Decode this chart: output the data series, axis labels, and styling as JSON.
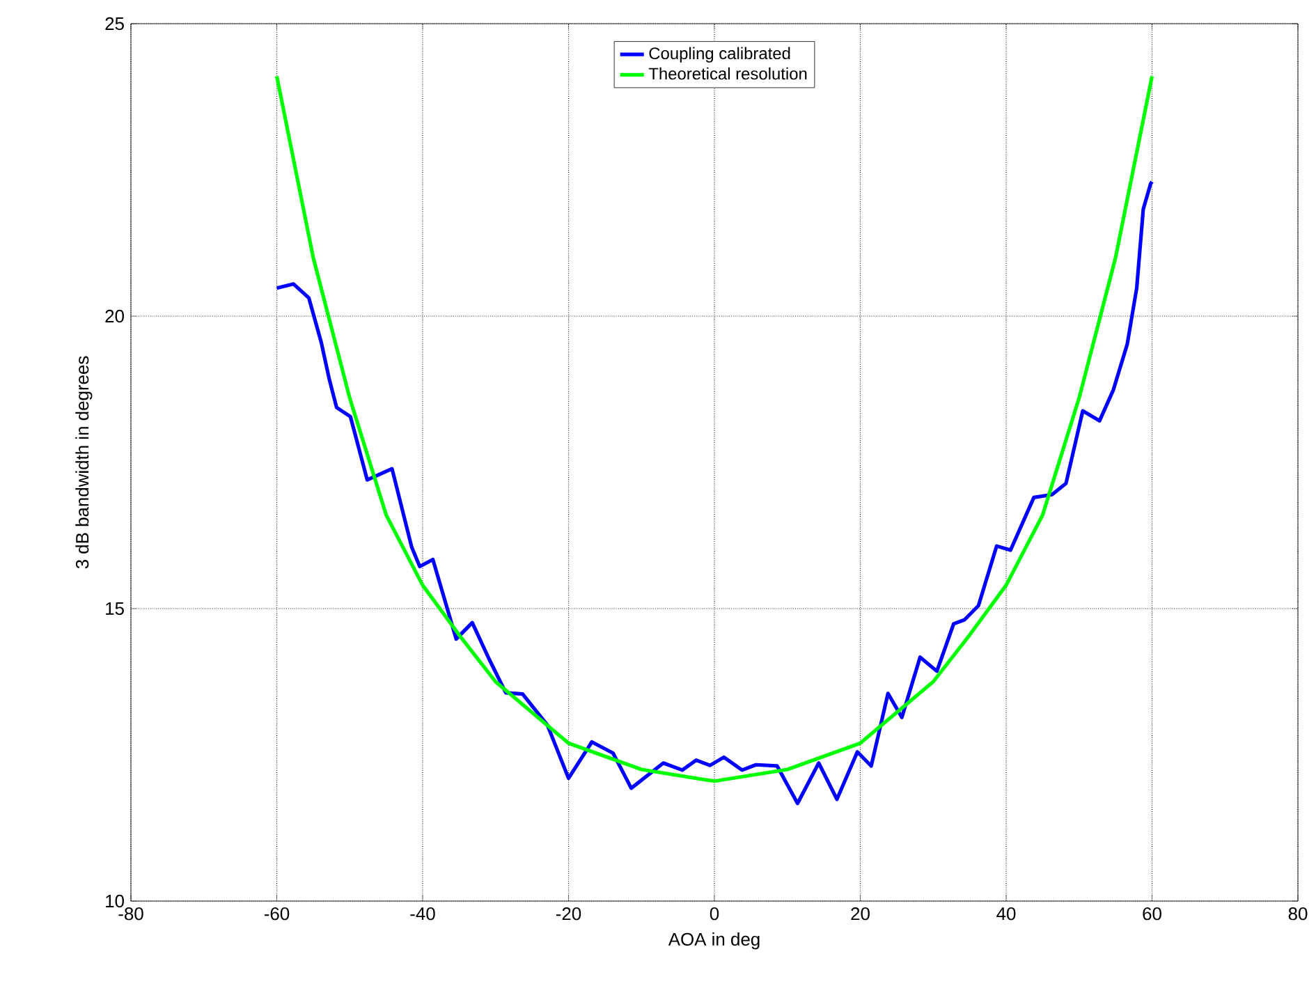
{
  "chart_data": {
    "type": "line",
    "xlabel": "AOA in deg",
    "ylabel": "3 dB bandwidth in degrees",
    "xlim": [
      -80,
      80
    ],
    "ylim": [
      10,
      25
    ],
    "xticks": [
      -80,
      -60,
      -40,
      -20,
      0,
      20,
      40,
      60,
      80
    ],
    "yticks": [
      10,
      15,
      20,
      25
    ],
    "grid": true,
    "legend": "top",
    "line_style": "solid",
    "marker": "none",
    "series": [
      {
        "name": "Coupling calibrated",
        "color": "#0000ff",
        "x": [
          -60,
          -57.7,
          -55.6,
          -53.9,
          -52.8,
          -51.8,
          -49.9,
          -47.6,
          -44.2,
          -41.5,
          -40.4,
          -38.6,
          -35.4,
          -33.2,
          -30.9,
          -28.6,
          -26.3,
          -22.9,
          -20,
          -16.8,
          -13.9,
          -11.4,
          -7,
          -4.4,
          -2.5,
          -0.6,
          1.3,
          3.8,
          5.7,
          8.6,
          11.4,
          14.3,
          16.8,
          19.6,
          21.5,
          23.8,
          25.7,
          28.2,
          30.5,
          32.8,
          34.3,
          36.2,
          38.7,
          40.6,
          43.8,
          46.3,
          48.2,
          50.5,
          52.8,
          54.7,
          56.6,
          57.9,
          58.8,
          59.8,
          60
        ],
        "values": [
          20.48,
          20.55,
          20.31,
          19.55,
          18.92,
          18.44,
          18.28,
          17.2,
          17.39,
          16.05,
          15.72,
          15.84,
          14.48,
          14.76,
          14.14,
          13.56,
          13.54,
          13.01,
          12.1,
          12.72,
          12.53,
          11.93,
          12.36,
          12.24,
          12.41,
          12.32,
          12.46,
          12.24,
          12.33,
          12.31,
          11.67,
          12.36,
          11.74,
          12.55,
          12.31,
          13.55,
          13.14,
          14.17,
          13.93,
          14.74,
          14.81,
          15.05,
          16.07,
          16.0,
          16.9,
          16.95,
          17.14,
          18.38,
          18.21,
          18.74,
          19.52,
          20.48,
          21.83,
          22.26,
          22.3
        ]
      },
      {
        "name": "Theoretical resolution",
        "color": "#00ff00",
        "x": [
          -60,
          -55,
          -50,
          -45,
          -40,
          -35,
          -30,
          -20,
          -10,
          0,
          10,
          20,
          30,
          35,
          40,
          45,
          50,
          55,
          60
        ],
        "values": [
          24.1,
          21.0,
          18.6,
          16.6,
          15.4,
          14.55,
          13.75,
          12.7,
          12.25,
          12.05,
          12.25,
          12.7,
          13.75,
          14.55,
          15.4,
          16.6,
          18.6,
          21.0,
          24.1
        ]
      }
    ]
  }
}
